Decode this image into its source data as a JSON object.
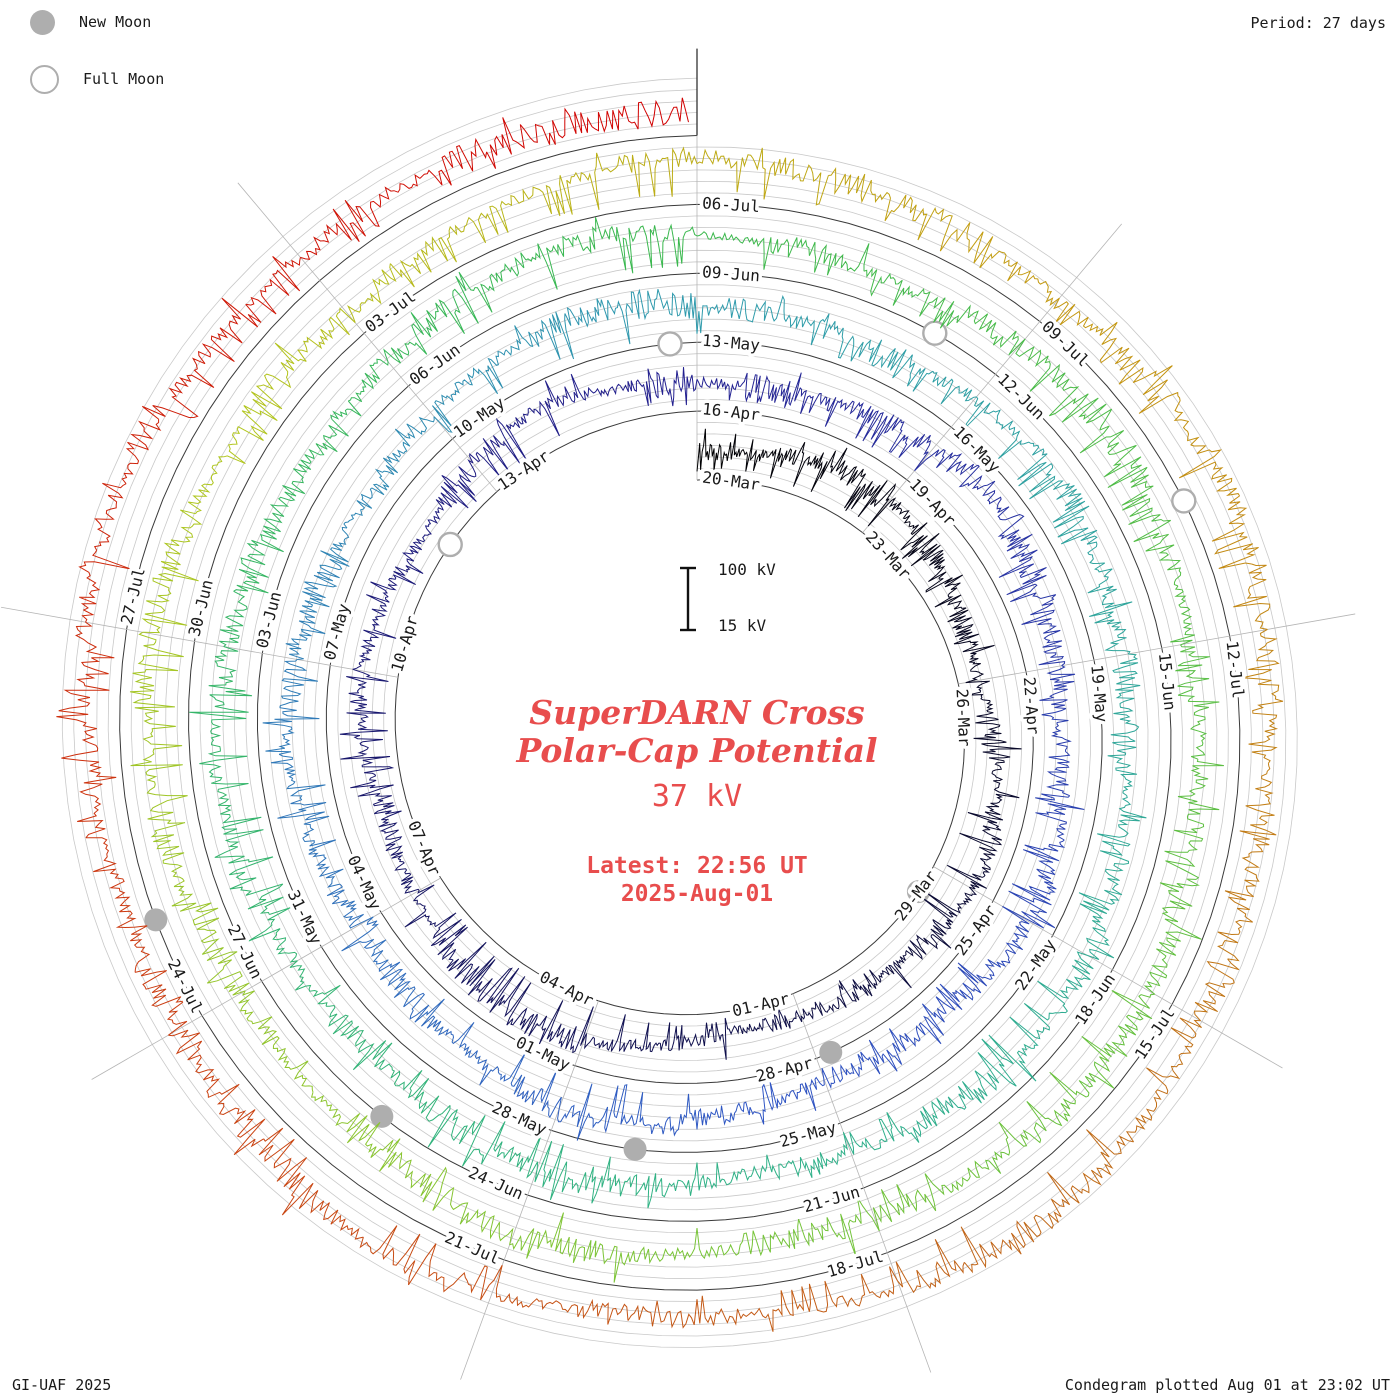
{
  "legend": {
    "new_moon": "New Moon",
    "full_moon": "Full Moon"
  },
  "period_label": "Period: 27 days",
  "credit": "GI-UAF 2025",
  "plotted_label": "Condegram plotted Aug 01 at 23:02 UT",
  "center": {
    "title_line1": "SuperDARN Cross",
    "title_line2": "Polar-Cap Potential",
    "current_value": "37 kV",
    "latest_line1": "Latest: 22:56 UT",
    "latest_line2": "2025-Aug-01",
    "scale_top": "100 kV",
    "scale_bottom": "15 kV"
  },
  "colors": {
    "annotation_red": "#e84d4d",
    "moon_gray": "#aeaeae",
    "grid_gray": "#c9c9c9",
    "spoke_gray": "#b5b5b5",
    "baseline": "#3a3a3a",
    "text_black": "#1a1a1a"
  },
  "chart_data": {
    "type": "line",
    "layout": "spiral-polar condegram, clockwise from top, one revolution = 27 days",
    "title": "SuperDARN Cross Polar-Cap Potential",
    "units": "kV",
    "period_days": 27,
    "start_date": "2025-03-20",
    "end_date": "2025-08-01",
    "latest_time_ut": "22:56 UT",
    "latest_value_kv": 37,
    "scale": {
      "ticks_kv": [
        15,
        100
      ]
    },
    "label_step_days": 3,
    "date_labels": [
      "20-Mar",
      "23-Mar",
      "26-Mar",
      "29-Mar",
      "01-Apr",
      "04-Apr",
      "07-Apr",
      "10-Apr",
      "13-Apr",
      "16-Apr",
      "19-Apr",
      "22-Apr",
      "25-Apr",
      "28-Apr",
      "01-May",
      "04-May",
      "07-May",
      "10-May",
      "13-May",
      "16-May",
      "19-May",
      "22-May",
      "25-May",
      "28-May",
      "31-May",
      "03-Jun",
      "06-Jun",
      "09-Jun",
      "12-Jun",
      "15-Jun",
      "18-Jun",
      "21-Jun",
      "24-Jun",
      "27-Jun",
      "30-Jun",
      "03-Jul",
      "06-Jul",
      "09-Jul",
      "12-Jul",
      "15-Jul",
      "18-Jul",
      "21-Jul",
      "24-Jul",
      "27-Jul"
    ],
    "daily_mean_kv": [
      38,
      42,
      55,
      61,
      48,
      35,
      30,
      44,
      58,
      66,
      52,
      40,
      33,
      29,
      45,
      62,
      70,
      55,
      42,
      36,
      48,
      57,
      44,
      38,
      52,
      64,
      49,
      41,
      35,
      47,
      59,
      68,
      54,
      43,
      37,
      50,
      61,
      46,
      39,
      33,
      45,
      57,
      65,
      51,
      42,
      36,
      49,
      60,
      47,
      40,
      34,
      46,
      58,
      67,
      53,
      44,
      38,
      51,
      62,
      48,
      41,
      35,
      47,
      59,
      66,
      52,
      43,
      37,
      50,
      61,
      46,
      39,
      45,
      57,
      64,
      50,
      42,
      36,
      48,
      60,
      68,
      54,
      45,
      39,
      52,
      63,
      49,
      42,
      36,
      48,
      59,
      67,
      53,
      44,
      38,
      51,
      62,
      47,
      40,
      34,
      46,
      58,
      65,
      51,
      43,
      37,
      49,
      61,
      68,
      54,
      45,
      39,
      52,
      63,
      50,
      42,
      36,
      48,
      60,
      66,
      52,
      44,
      38,
      51,
      62,
      48,
      41,
      35,
      47,
      58,
      65,
      51,
      43,
      40,
      37
    ],
    "color_stops": [
      {
        "day": 0,
        "color": "#000000"
      },
      {
        "day": 14,
        "color": "#10104e"
      },
      {
        "day": 27,
        "color": "#232090"
      },
      {
        "day": 40,
        "color": "#2f55c4"
      },
      {
        "day": 54,
        "color": "#2f9aad"
      },
      {
        "day": 67,
        "color": "#2fb188"
      },
      {
        "day": 81,
        "color": "#3ab84e"
      },
      {
        "day": 95,
        "color": "#79c437"
      },
      {
        "day": 104,
        "color": "#b2c61e"
      },
      {
        "day": 111,
        "color": "#c49a10"
      },
      {
        "day": 119,
        "color": "#c06818"
      },
      {
        "day": 127,
        "color": "#cc3a10"
      },
      {
        "day": 135,
        "color": "#d10000"
      }
    ],
    "moons": {
      "new": [
        {
          "date": "2025-03-29",
          "day": 9.46
        },
        {
          "date": "2025-04-27",
          "day": 38.81
        },
        {
          "date": "2025-05-27",
          "day": 68.13
        },
        {
          "date": "2025-06-25",
          "day": 97.44
        },
        {
          "date": "2025-07-24",
          "day": 126.8
        }
      ],
      "full": [
        {
          "date": "2025-04-12",
          "day": 23.02
        },
        {
          "date": "2025-05-12",
          "day": 53.7
        },
        {
          "date": "2025-06-11",
          "day": 83.32
        },
        {
          "date": "2025-07-10",
          "day": 112.86
        }
      ]
    }
  }
}
